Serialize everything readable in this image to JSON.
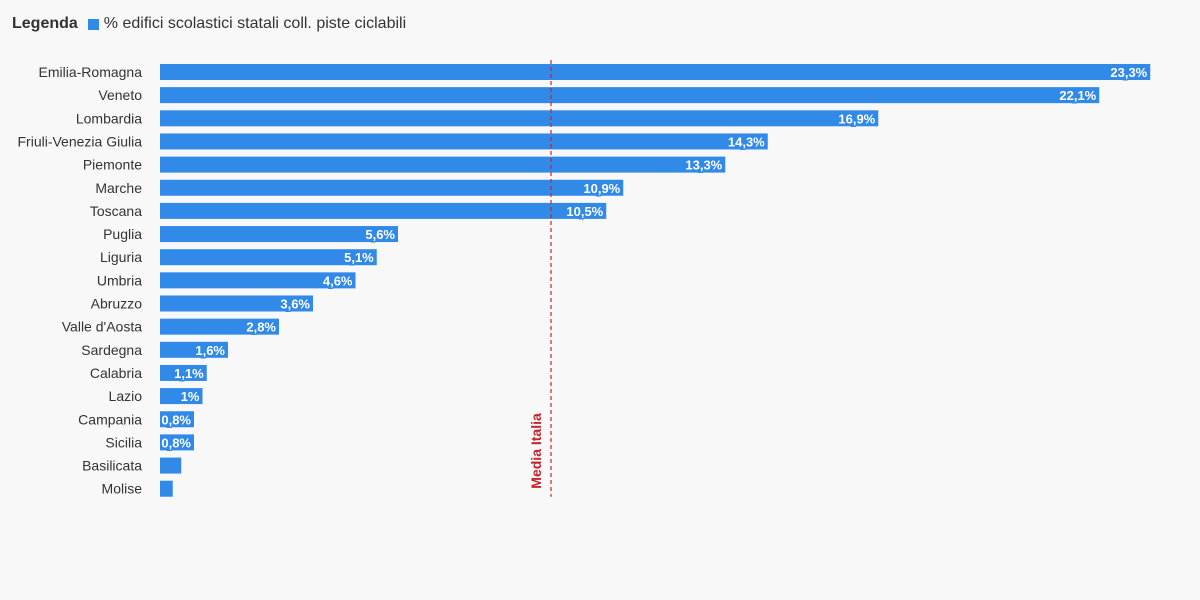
{
  "legend": {
    "title": "Legenda",
    "series_label": "% edifici scolastici statali coll. piste ciclabili"
  },
  "colors": {
    "bar": "#3189e8",
    "reference": "#c8232c",
    "text": "#333333",
    "background": "#f8f8f8"
  },
  "chart_data": {
    "type": "bar",
    "orientation": "horizontal",
    "categories": [
      "Emilia-Romagna",
      "Veneto",
      "Lombardia",
      "Friuli-Venezia Giulia",
      "Piemonte",
      "Marche",
      "Toscana",
      "Puglia",
      "Liguria",
      "Umbria",
      "Abruzzo",
      "Valle d'Aosta",
      "Sardegna",
      "Calabria",
      "Lazio",
      "Campania",
      "Sicilia",
      "Basilicata",
      "Molise"
    ],
    "series": [
      {
        "name": "% edifici scolastici statali coll. piste ciclabili",
        "values": [
          23.3,
          22.1,
          16.9,
          14.3,
          13.3,
          10.9,
          10.5,
          5.6,
          5.1,
          4.6,
          3.6,
          2.8,
          1.6,
          1.1,
          1.0,
          0.8,
          0.8,
          0.5,
          0.3
        ]
      }
    ],
    "value_labels": [
      "23,3%",
      "22,1%",
      "16,9%",
      "14,3%",
      "13,3%",
      "10,9%",
      "10,5%",
      "5,6%",
      "5,1%",
      "4,6%",
      "3,6%",
      "2,8%",
      "1,6%",
      "1,1%",
      "1%",
      "0,8%",
      "0,8%",
      "",
      ""
    ],
    "reference_line": {
      "label": "Media Italia",
      "value": 9.2
    },
    "xlim": [
      0,
      24
    ],
    "grid": false,
    "legend_position": "top-left"
  }
}
